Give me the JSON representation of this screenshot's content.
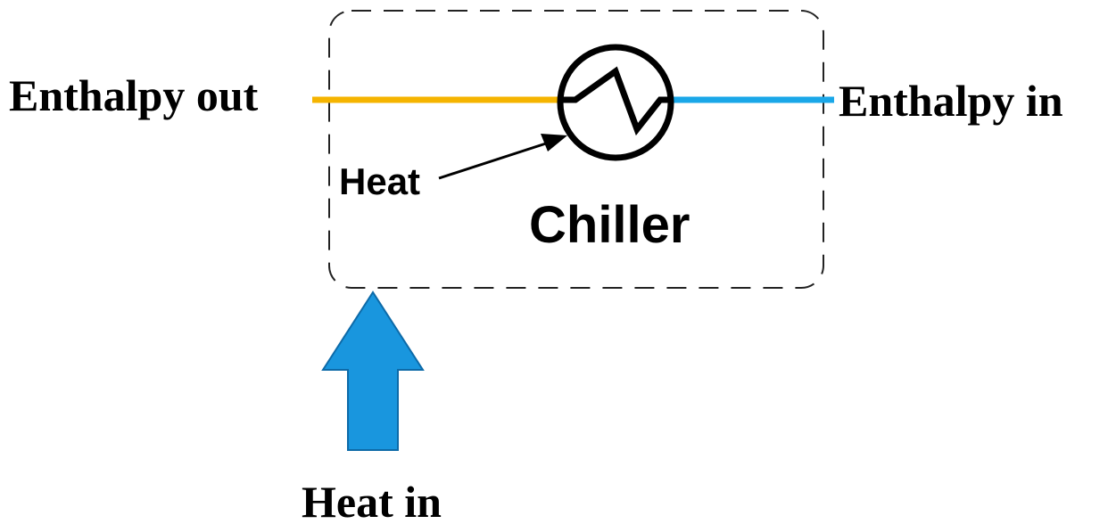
{
  "labels": {
    "enthalpy_out": "Enthalpy out",
    "enthalpy_in": "Enthalpy in",
    "heat": "Heat",
    "chiller": "Chiller",
    "heat_in": "Heat in"
  }
}
